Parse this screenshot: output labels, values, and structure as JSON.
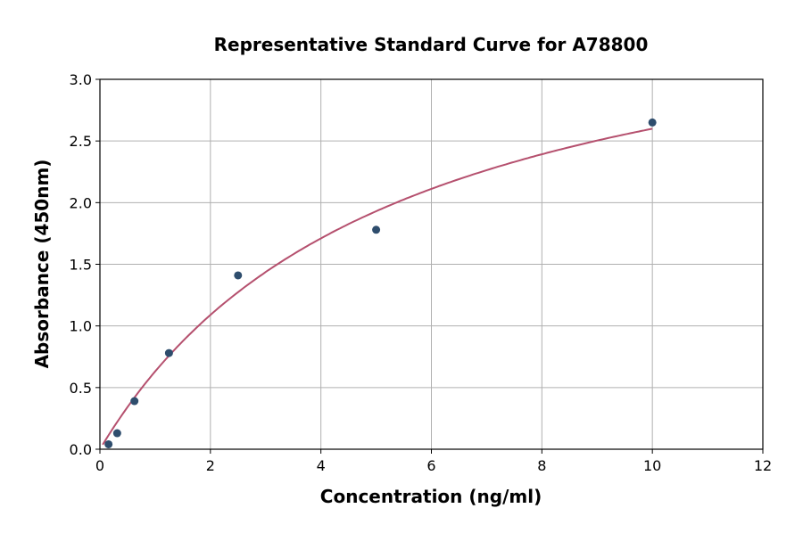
{
  "chart_data": {
    "type": "scatter",
    "title": "Representative Standard Curve for A78800",
    "xlabel": "Concentration (ng/ml)",
    "ylabel": "Absorbance (450nm)",
    "xlim": [
      0,
      12
    ],
    "ylim": [
      0,
      3.0
    ],
    "xticks": [
      0,
      2,
      4,
      6,
      8,
      10,
      12
    ],
    "yticks": [
      "0.0",
      "0.5",
      "1.0",
      "1.5",
      "2.0",
      "2.5",
      "3.0"
    ],
    "grid": true,
    "points": {
      "x": [
        0.156,
        0.3125,
        0.625,
        1.25,
        2.5,
        5,
        10
      ],
      "y": [
        0.04,
        0.13,
        0.39,
        0.78,
        1.41,
        1.78,
        2.65
      ],
      "color": "#2e4d6d"
    },
    "fit_curve": {
      "x": [
        0.05,
        0.25,
        0.5,
        1,
        1.5,
        2,
        3,
        4,
        5,
        6,
        7,
        8,
        9,
        10
      ],
      "y": [
        0.04,
        0.18,
        0.34,
        0.63,
        0.88,
        1.09,
        1.44,
        1.71,
        1.93,
        2.11,
        2.26,
        2.39,
        2.5,
        2.6
      ],
      "color": "#b5506e"
    }
  }
}
